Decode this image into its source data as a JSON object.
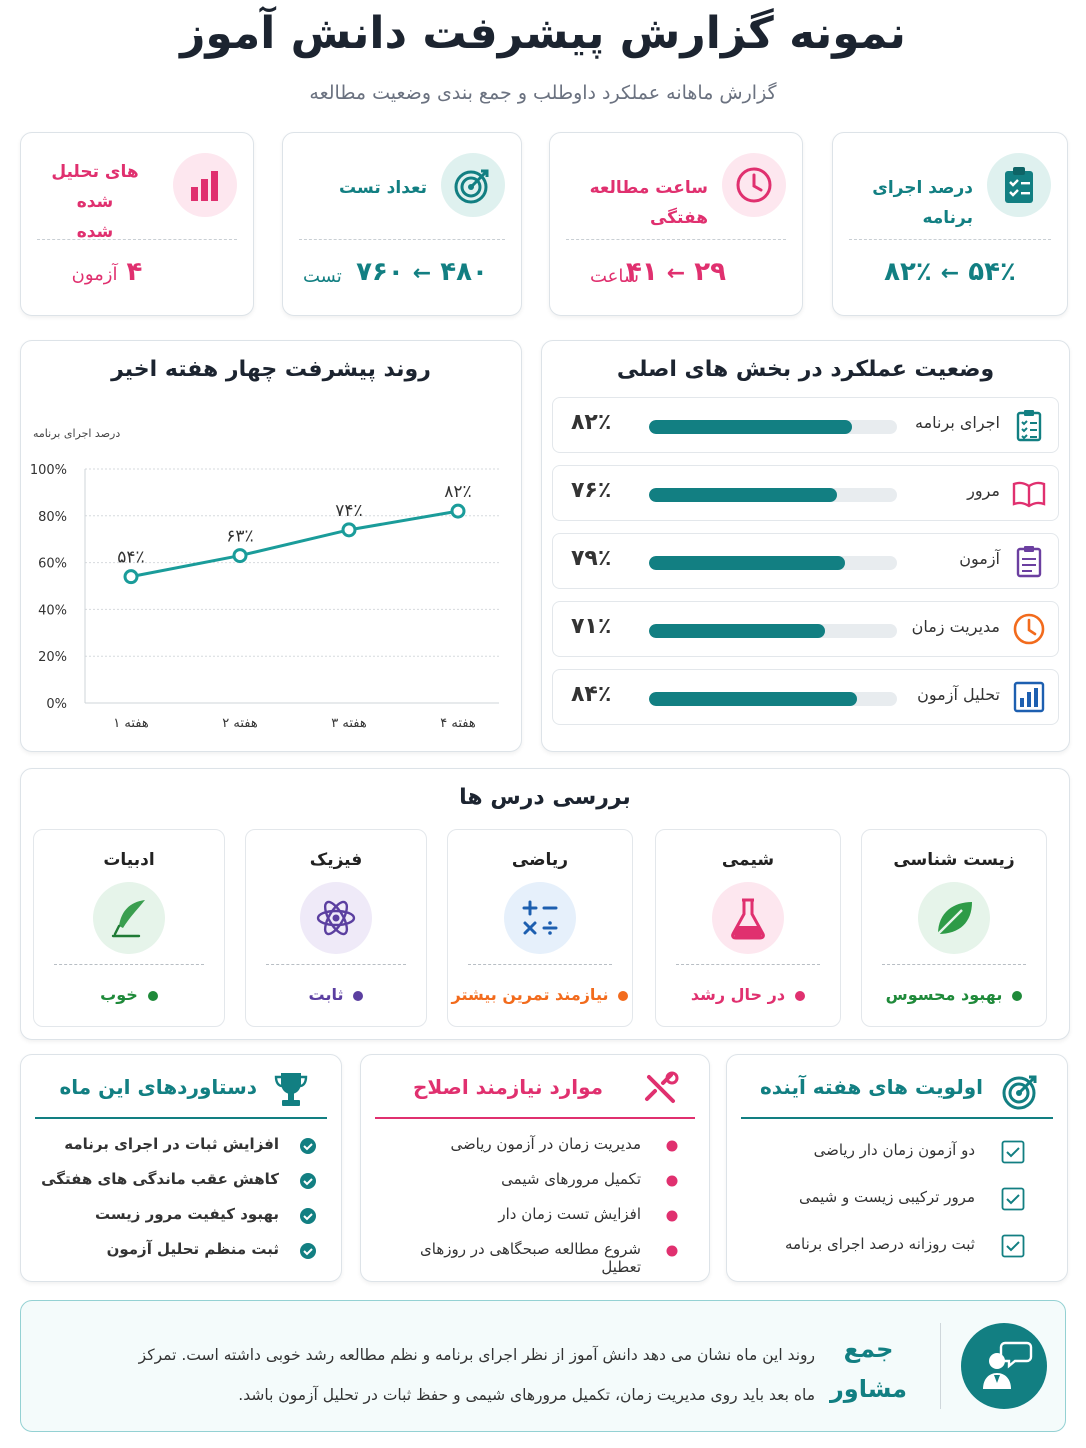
{
  "header": {
    "title": "نمونه گزارش پیشرفت دانش آموز",
    "subtitle": "گزارش ماهانه عملکرد داوطلب و جمع بندی وضعیت مطالعه"
  },
  "stats": [
    {
      "label": "درصد اجرای برنامه",
      "from": "۵۴٪",
      "to": "۸۲٪",
      "arrow": "←",
      "unit": "",
      "icon": "clipboard-check-icon",
      "color": "#127f82"
    },
    {
      "label": "ساعت مطالعه هفتگی",
      "from": "۲۹",
      "to": "۴۱",
      "arrow": "←",
      "unit": "ساعت",
      "icon": "clock-icon",
      "color": "#e0306f"
    },
    {
      "label": "تعداد تست",
      "from": "۴۸۰",
      "to": "۷۶۰",
      "arrow": "←",
      "unit": "تست",
      "icon": "target-icon",
      "color": "#127f82"
    },
    {
      "label": "های تحلیل شده",
      "label2": "شده",
      "value": "۴",
      "unit": "آزمون",
      "icon": "bar-chart-icon",
      "color": "#e0306f"
    }
  ],
  "chart_data": {
    "type": "line",
    "title": "روند پیشرفت چهار هفته اخیر",
    "ylabel": "درصد اجرای برنامه",
    "categories": [
      "هفته ۱",
      "هفته ۲",
      "هفته ۳",
      "هفته ۴"
    ],
    "values": [
      54,
      63,
      74,
      82
    ],
    "data_labels": [
      "۵۴٪",
      "۶۳٪",
      "۷۴٪",
      "۸۲٪"
    ],
    "ylim": [
      0,
      100
    ],
    "yticks": [
      "0%",
      "20%",
      "40%",
      "60%",
      "80%",
      "100%"
    ],
    "grid": true,
    "color": "#1a9c9a"
  },
  "performance": {
    "title": "وضعیت عملکرد در بخش های اصلی",
    "items": [
      {
        "label": "اجرای برنامه",
        "pct_text": "۸۲٪",
        "value": 82,
        "icon": "clipboard-list-icon"
      },
      {
        "label": "مرور",
        "pct_text": "۷۶٪",
        "value": 76,
        "icon": "book-icon"
      },
      {
        "label": "آزمون",
        "pct_text": "۷۹٪",
        "value": 79,
        "icon": "exam-sheet-icon"
      },
      {
        "label": "مدیریت زمان",
        "pct_text": "۷۱٪",
        "value": 71,
        "icon": "clock-icon"
      },
      {
        "label": "تحلیل آزمون",
        "pct_text": "۸۴٪",
        "value": 84,
        "icon": "analytics-icon"
      }
    ]
  },
  "subjects": {
    "title": "بررسی درس ها",
    "items": [
      {
        "name": "زیست شناسی",
        "status": "بهبود محسوس",
        "color": "#1f8a3a",
        "bg": "#e6f4ea",
        "icon": "leaf-icon"
      },
      {
        "name": "شیمی",
        "status": "در حال رشد",
        "color": "#e0306f",
        "bg": "#fde7ef",
        "icon": "flask-icon"
      },
      {
        "name": "ریاضی",
        "status": "نیازمند تمرین بیشتر",
        "color": "#f26b1d",
        "bg": "#e6f0fb",
        "icon": "math-operators-icon"
      },
      {
        "name": "فیزیک",
        "status": "ثابت",
        "color": "#5b3fa0",
        "bg": "#efeaf8",
        "icon": "atom-icon"
      },
      {
        "name": "ادبیات",
        "status": "خوب",
        "color": "#1f8a3a",
        "bg": "#e6f4ea",
        "icon": "feather-pen-icon"
      }
    ]
  },
  "priorities": {
    "title": "اولویت های هفته آینده",
    "color": "#127f82",
    "items": [
      "دو آزمون زمان دار ریاضی",
      "مرور ترکیبی زیست و شیمی",
      "ثبت روزانه درصد اجرای برنامه"
    ]
  },
  "fixes": {
    "title": "موارد نیازمند اصلاح",
    "color": "#e0306f",
    "items": [
      "مدیریت زمان در آزمون ریاضی",
      "تکمیل مرورهای شیمی",
      "افزایش تست زمان دار",
      "شروع مطالعه صبحگاهی در روزهای تعطیل"
    ]
  },
  "achievements": {
    "title": "دستاوردهای این ماه",
    "color": "#127f82",
    "items": [
      "افزایش ثبات در اجرای برنامه",
      "کاهش عقب ماندگی های هفتگی",
      "بهبود کیفیت مرور زیست",
      "ثبت منظم تحلیل آزمون"
    ]
  },
  "summary": {
    "heading_line1": "جمع",
    "heading_line2": "مشاور",
    "line1": "روند این ماه نشان می دهد دانش آموز از نظر اجرای برنامه و نظم مطالعه رشد خوبی داشته است. تمرکز",
    "line2": "ماه بعد باید روی مدیریت زمان، تکمیل مرورهای شیمی و حفظ ثبات در تحلیل آزمون باشد."
  }
}
